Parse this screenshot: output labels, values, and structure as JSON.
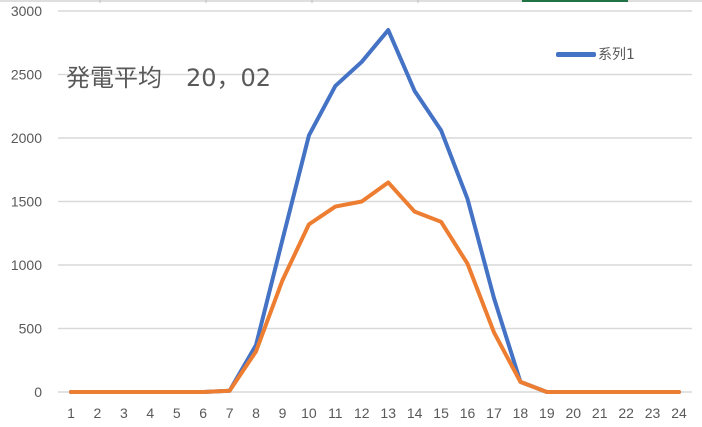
{
  "chart_data": {
    "type": "line",
    "title": "発電平均　20，02",
    "x": [
      1,
      2,
      3,
      4,
      5,
      6,
      7,
      8,
      9,
      10,
      11,
      12,
      13,
      14,
      15,
      16,
      17,
      18,
      19,
      20,
      21,
      22,
      23,
      24
    ],
    "ylim": [
      0,
      3000
    ],
    "yticks": [
      0,
      500,
      1000,
      1500,
      2000,
      2500,
      3000
    ],
    "grid": true,
    "legend_placement": "top-right",
    "series": [
      {
        "name": "系列1",
        "color": "#4472C4",
        "values": [
          0,
          0,
          0,
          0,
          0,
          0,
          10,
          370,
          1200,
          2020,
          2410,
          2600,
          2850,
          2370,
          2060,
          1520,
          740,
          80,
          0,
          0,
          0,
          0,
          0,
          0
        ]
      },
      {
        "color": "#ED7D31",
        "values": [
          0,
          0,
          0,
          0,
          0,
          0,
          10,
          320,
          880,
          1320,
          1460,
          1500,
          1650,
          1420,
          1340,
          1010,
          470,
          80,
          0,
          0,
          0,
          0,
          0,
          0
        ]
      }
    ]
  },
  "sheet": {
    "selection_color": "#217346"
  }
}
